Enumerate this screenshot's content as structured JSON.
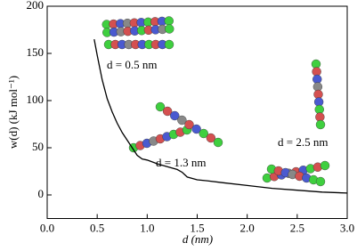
{
  "chart_data": {
    "type": "line",
    "x_label": "d (nm)",
    "y_label": "w(d) (kJ mol⁻¹)",
    "annotations": [
      "d = 0.5 nm",
      "d = 1.3 nm",
      "d = 2.5 nm"
    ],
    "series": [
      {
        "color": "#000000",
        "x": [
          0.47,
          0.5,
          0.55,
          0.6,
          0.65,
          0.7,
          0.75,
          0.8,
          0.85,
          0.9,
          0.95,
          1.0,
          1.1,
          1.2,
          1.3,
          1.35,
          1.4,
          1.5,
          1.6,
          1.75,
          2.0,
          2.25,
          2.5,
          2.75,
          3.0
        ],
        "values": [
          165,
          148,
          122,
          102,
          88,
          76,
          66,
          58,
          50,
          42,
          38,
          37,
          33,
          30,
          27,
          24,
          19,
          16,
          15,
          13,
          10,
          7,
          5,
          3,
          2
        ]
      }
    ],
    "xlim": [
      0,
      3
    ],
    "xticks": [
      {
        "value": 0,
        "label": "0.0"
      },
      0.5,
      {
        "value": 1,
        "label": "1.0"
      },
      1.5,
      {
        "value": 2,
        "label": "2.0"
      },
      2.5,
      {
        "value": 3,
        "label": "3.0"
      }
    ],
    "ylim": [
      -25,
      200
    ],
    "yticks": [
      0,
      50,
      100,
      150,
      200
    ]
  }
}
